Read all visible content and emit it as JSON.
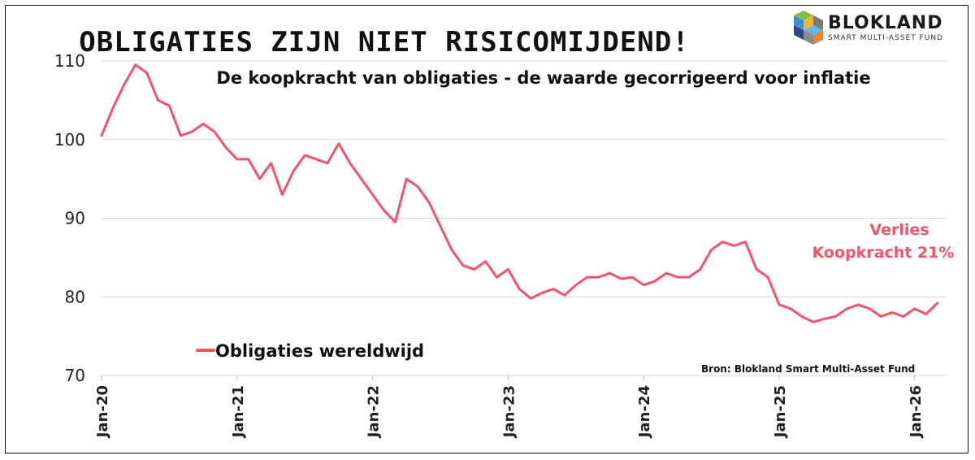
{
  "logo": {
    "name": "BLOKLAND",
    "subtitle": "SMART MULTI-ASSET FUND"
  },
  "colors": {
    "line": "#f2546b",
    "annotation": "#f2546b"
  },
  "chart_data": {
    "type": "line",
    "title": "OBLIGATIES ZIJN NIET RISICOMIJDEND!",
    "subtitle": "De koopkracht van obligaties - de waarde gecorrigeerd voor inflatie",
    "xlabel": "",
    "ylabel": "",
    "ylim": [
      70,
      110
    ],
    "yticks": [
      70,
      80,
      90,
      100,
      110
    ],
    "x_ticks": [
      "Jan-20",
      "Jan-21",
      "Jan-22",
      "Jan-23",
      "Jan-24",
      "Jan-25",
      "Jan-26"
    ],
    "grid": true,
    "legend_position": "bottom-left",
    "annotation": {
      "line1": "Verlies",
      "line2": "Koopkracht 21%"
    },
    "source": "Bron: Blokland Smart Multi-Asset Fund",
    "series": [
      {
        "name": "Obligaties wereldwijd",
        "x": [
          "2020-01",
          "2020-02",
          "2020-03",
          "2020-04",
          "2020-05",
          "2020-06",
          "2020-07",
          "2020-08",
          "2020-09",
          "2020-10",
          "2020-11",
          "2020-12",
          "2021-01",
          "2021-02",
          "2021-03",
          "2021-04",
          "2021-05",
          "2021-06",
          "2021-07",
          "2021-08",
          "2021-09",
          "2021-10",
          "2021-11",
          "2021-12",
          "2022-01",
          "2022-02",
          "2022-03",
          "2022-04",
          "2022-05",
          "2022-06",
          "2022-07",
          "2022-08",
          "2022-09",
          "2022-10",
          "2022-11",
          "2022-12",
          "2023-01",
          "2023-02",
          "2023-03",
          "2023-04",
          "2023-05",
          "2023-06",
          "2023-07",
          "2023-08",
          "2023-09",
          "2023-10",
          "2023-11",
          "2023-12",
          "2024-01",
          "2024-02",
          "2024-03",
          "2024-04",
          "2024-05",
          "2024-06",
          "2024-07",
          "2024-08",
          "2024-09",
          "2024-10",
          "2024-11",
          "2024-12",
          "2025-01",
          "2025-02",
          "2025-03",
          "2025-04",
          "2025-05",
          "2025-06",
          "2025-07",
          "2025-08",
          "2025-09",
          "2025-10",
          "2025-11",
          "2025-12",
          "2026-01",
          "2026-02",
          "2026-03"
        ],
        "values": [
          100.5,
          104,
          107,
          109.5,
          108.5,
          105,
          104.3,
          100.5,
          101,
          102,
          101,
          99,
          97.5,
          97.5,
          95,
          97,
          93,
          96,
          98,
          97.5,
          97,
          99.5,
          97,
          95,
          93,
          91,
          89.5,
          95,
          94,
          92,
          89,
          86,
          84,
          83.5,
          84.5,
          82.5,
          83.5,
          81,
          79.8,
          80.5,
          81,
          80.2,
          81.5,
          82.5,
          82.5,
          83,
          82.3,
          82.5,
          81.5,
          82,
          83,
          82.5,
          82.5,
          83.5,
          86,
          87,
          86.5,
          87,
          83.5,
          82.5,
          79,
          78.5,
          77.5,
          76.8,
          77.2,
          77.5,
          78.5,
          79,
          78.5,
          77.5,
          78,
          77.5,
          78.5,
          77.8,
          79.2
        ]
      }
    ]
  }
}
